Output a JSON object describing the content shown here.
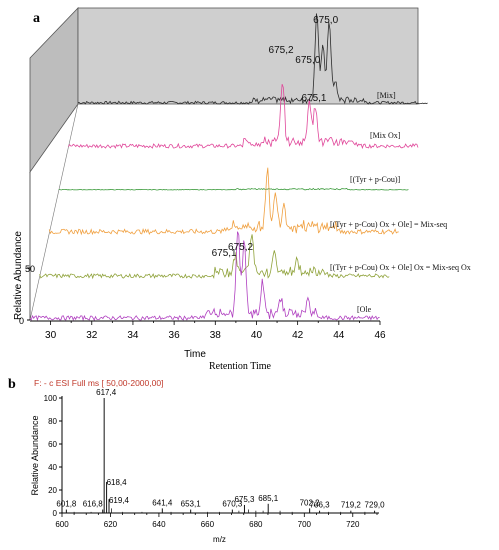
{
  "panels": {
    "a_letter": "a",
    "b_letter": "b"
  },
  "chart_data": [
    {
      "type": "line",
      "panel": "a",
      "xlabel": "Time",
      "xlabel_secondary": "Retention Time",
      "ylabel": "Relative Abundance",
      "xlim": [
        29,
        46
      ],
      "x_ticks": [
        "30",
        "32",
        "34",
        "36",
        "38",
        "40",
        "42",
        "44",
        "46"
      ],
      "y_ticks": [
        "0",
        "50"
      ],
      "traces": [
        {
          "label": "[Mix]",
          "color": "#2b2b2b",
          "peaks": [
            [
              40.6,
              1.0
            ],
            [
              41.2,
              0.9
            ],
            [
              40.9,
              0.6
            ],
            [
              41.5,
              0.2
            ]
          ],
          "noise": 0.03
        },
        {
          "label": "[Mix Ox]",
          "color": "#e0479a",
          "peaks": [
            [
              39.4,
              0.75
            ],
            [
              40.7,
              0.55
            ],
            [
              41.0,
              0.45
            ]
          ],
          "noise": 0.05
        },
        {
          "label": "[(Tyr + p-Cou)]",
          "color": "#3a9a3a",
          "peaks": [],
          "noise": 0.02
        },
        {
          "label": "[(Tyr + p-Cou) Ox + Ole] = Mix-seq",
          "color": "#f0a040",
          "peaks": [
            [
              39.6,
              0.7
            ],
            [
              40.0,
              0.45
            ],
            [
              40.4,
              0.3
            ]
          ],
          "noise": 0.06
        },
        {
          "label": "[(Tyr + p-Cou) Ox + Ole] Ox = Mix-seq Ox",
          "color": "#8fa23a",
          "peaks": [
            [
              39.3,
              0.55
            ],
            [
              38.5,
              0.25
            ],
            [
              40.4,
              0.3
            ],
            [
              41.5,
              0.2
            ]
          ],
          "noise": 0.06
        },
        {
          "label": "[Ole",
          "color": "#b040c0",
          "peaks": [
            [
              39.1,
              1.0
            ],
            [
              39.4,
              0.9
            ],
            [
              40.3,
              0.35
            ],
            [
              41.2,
              0.2
            ],
            [
              42.5,
              0.15
            ]
          ],
          "noise": 0.05
        }
      ],
      "annotations": [
        {
          "text": "675,0",
          "trace": 0,
          "x": 41.1
        },
        {
          "text": "675,2",
          "trace": 1,
          "x": 39.4
        },
        {
          "text": "675,0",
          "trace": 1,
          "x": 40.7
        },
        {
          "text": "675,1",
          "trace": 1,
          "x": 41.0
        },
        {
          "text": "675,1",
          "trace": 5,
          "x": 38.5
        },
        {
          "text": "675,2",
          "trace": 5,
          "x": 39.3
        }
      ]
    },
    {
      "type": "bar",
      "panel": "b",
      "header": "F: - c ESI Full ms [ 50,00-2000,00]",
      "xlabel": "m/z",
      "ylabel": "Relative Abundance",
      "xlim": [
        600,
        730
      ],
      "ylim": [
        0,
        100
      ],
      "x_ticks": [
        600,
        620,
        640,
        660,
        680,
        700,
        720
      ],
      "y_ticks": [
        0,
        20,
        40,
        60,
        80,
        100
      ],
      "labeled_peaks": [
        {
          "mz": 601.8,
          "label": "601,8",
          "intensity": 3
        },
        {
          "mz": 616.8,
          "label": "616,8",
          "intensity": 3
        },
        {
          "mz": 617.4,
          "label": "617,4",
          "intensity": 100
        },
        {
          "mz": 618.4,
          "label": "618,4",
          "intensity": 27
        },
        {
          "mz": 619.4,
          "label": "619,4",
          "intensity": 12
        },
        {
          "mz": 641.4,
          "label": "641,4",
          "intensity": 4
        },
        {
          "mz": 653.1,
          "label": "653,1",
          "intensity": 3
        },
        {
          "mz": 670.3,
          "label": "670,3",
          "intensity": 3
        },
        {
          "mz": 675.3,
          "label": "675,3",
          "intensity": 7
        },
        {
          "mz": 685.1,
          "label": "685,1",
          "intensity": 8
        },
        {
          "mz": 702.2,
          "label": "702,2",
          "intensity": 4
        },
        {
          "mz": 706.3,
          "label": "706,3",
          "intensity": 2
        },
        {
          "mz": 719.2,
          "label": "719,2",
          "intensity": 2
        },
        {
          "mz": 729.0,
          "label": "729,0",
          "intensity": 2
        }
      ],
      "minor_peaks": [
        {
          "mz": 605.0,
          "intensity": 1
        },
        {
          "mz": 612.0,
          "intensity": 1
        },
        {
          "mz": 620.4,
          "intensity": 4
        },
        {
          "mz": 625.0,
          "intensity": 1
        },
        {
          "mz": 633.0,
          "intensity": 1
        },
        {
          "mz": 645.0,
          "intensity": 1
        },
        {
          "mz": 660.0,
          "intensity": 1
        },
        {
          "mz": 665.0,
          "intensity": 1
        },
        {
          "mz": 673.0,
          "intensity": 2
        },
        {
          "mz": 677.0,
          "intensity": 3
        },
        {
          "mz": 680.0,
          "intensity": 2
        },
        {
          "mz": 683.0,
          "intensity": 2
        },
        {
          "mz": 690.0,
          "intensity": 2
        },
        {
          "mz": 695.0,
          "intensity": 1
        },
        {
          "mz": 710.0,
          "intensity": 1
        },
        {
          "mz": 715.0,
          "intensity": 1
        },
        {
          "mz": 725.0,
          "intensity": 1
        }
      ]
    }
  ]
}
